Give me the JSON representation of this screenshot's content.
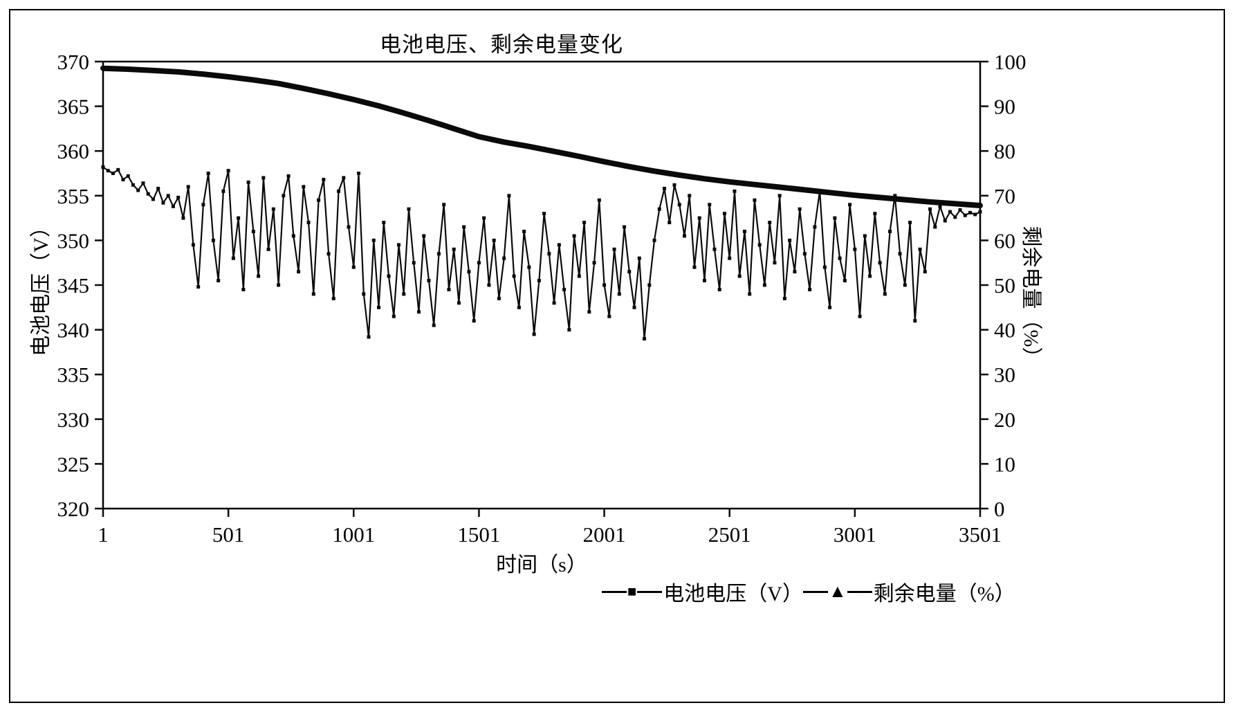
{
  "colors": {
    "line": "#0a0a0a",
    "background": "#ffffff",
    "border": "#000000"
  },
  "chart_data": {
    "type": "line",
    "title": "电池电压、剩余电量变化",
    "xlabel": "时间（s）",
    "ylabel_left": "电池电压（V）",
    "ylabel_right": "剩余电量（%）",
    "x_range": [
      1,
      3501
    ],
    "x_ticks": [
      1,
      501,
      1001,
      1501,
      2001,
      2501,
      3001,
      3501
    ],
    "left_axis": {
      "min": 320,
      "max": 370,
      "ticks": [
        320,
        325,
        330,
        335,
        340,
        345,
        350,
        355,
        360,
        365,
        370
      ]
    },
    "right_axis": {
      "min": 0,
      "max": 100,
      "ticks": [
        0,
        10,
        20,
        30,
        40,
        50,
        60,
        70,
        80,
        90,
        100
      ]
    },
    "legend": [
      {
        "label": "电池电压（V）",
        "marker": "■"
      },
      {
        "label": "剩余电量（%）",
        "marker": "▲"
      }
    ],
    "series": [
      {
        "name": "电池电压（V）",
        "axis": "left",
        "marker": "square",
        "x_start": 1,
        "dx": 20,
        "values": [
          358.2,
          357.8,
          357.5,
          357.9,
          356.8,
          357.2,
          356.2,
          355.6,
          356.4,
          355.2,
          354.6,
          355.8,
          354.2,
          355.0,
          353.8,
          354.8,
          352.5,
          356.0,
          349.5,
          344.8,
          354.0,
          357.5,
          350.0,
          345.5,
          355.5,
          357.8,
          348.0,
          352.5,
          344.5,
          356.5,
          351.0,
          346.0,
          357.0,
          349.0,
          353.5,
          345.0,
          355.0,
          357.2,
          350.5,
          346.5,
          356.0,
          352.0,
          344.0,
          354.5,
          356.8,
          348.5,
          343.5,
          355.5,
          357.0,
          351.5,
          347.0,
          357.5,
          344.0,
          339.2,
          350.0,
          342.5,
          352.0,
          346.0,
          341.5,
          349.5,
          344.0,
          353.5,
          347.5,
          342.0,
          350.5,
          345.5,
          340.5,
          348.5,
          354.0,
          344.5,
          349.0,
          343.0,
          351.5,
          346.5,
          341.0,
          347.5,
          352.5,
          345.0,
          350.0,
          343.5,
          348.0,
          355.0,
          346.0,
          342.5,
          351.0,
          347.0,
          339.5,
          345.5,
          353.0,
          348.5,
          343.0,
          349.5,
          344.5,
          340.0,
          350.5,
          346.0,
          352.0,
          342.0,
          347.5,
          354.5,
          345.0,
          341.5,
          349.0,
          344.0,
          351.5,
          346.5,
          342.5,
          348.0,
          339.0,
          345.0,
          350.0,
          353.5,
          355.8,
          352.0,
          356.2,
          354.0,
          350.5,
          355.0,
          347.0,
          352.5,
          345.5,
          354.0,
          349.0,
          344.5,
          353.0,
          348.0,
          355.5,
          346.0,
          351.0,
          344.0,
          354.5,
          349.5,
          345.0,
          352.0,
          347.5,
          355.0,
          343.5,
          350.0,
          346.5,
          353.5,
          348.5,
          344.5,
          351.5,
          355.5,
          347.0,
          342.5,
          352.5,
          348.0,
          345.5,
          354.0,
          349.0,
          341.5,
          350.5,
          346.0,
          353.0,
          347.5,
          344.0,
          351.0,
          355.0,
          348.5,
          345.0,
          352.0,
          341.0,
          349.0,
          346.5,
          353.5,
          351.5,
          353.8,
          352.2,
          353.2,
          352.6,
          353.4,
          352.8,
          353.1,
          352.9,
          353.2
        ]
      },
      {
        "name": "剩余电量（%）",
        "axis": "right",
        "marker": "triangle",
        "x_start": 1,
        "dx": 100,
        "values": [
          98.5,
          98.3,
          98.0,
          97.7,
          97.2,
          96.6,
          95.9,
          95.1,
          94.0,
          92.8,
          91.5,
          90.1,
          88.5,
          86.8,
          85.0,
          83.2,
          82.0,
          81.0,
          79.9,
          78.8,
          77.6,
          76.5,
          75.5,
          74.6,
          73.8,
          73.1,
          72.5,
          71.9,
          71.3,
          70.7,
          70.1,
          69.6,
          69.1,
          68.6,
          68.2,
          67.8
        ]
      }
    ]
  }
}
